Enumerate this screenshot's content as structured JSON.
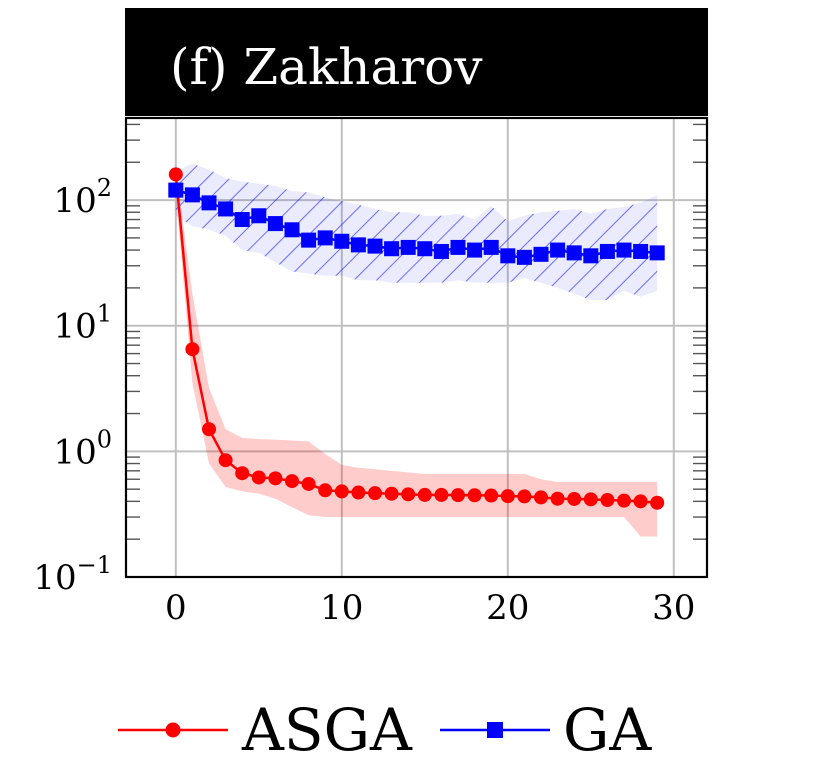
{
  "chart_data": {
    "type": "line",
    "title": "(f) Zakharov",
    "xlabel": "",
    "ylabel": "",
    "yscale": "log",
    "xlim": [
      -3,
      32
    ],
    "ylim": [
      0.1,
      450
    ],
    "xticks": [
      0,
      10,
      20,
      30
    ],
    "xtick_labels": [
      "0",
      "10",
      "20",
      "30"
    ],
    "yticks": [
      0.1,
      1,
      10,
      100
    ],
    "ytick_labels": [
      {
        "base": "10",
        "exp": "−1"
      },
      {
        "base": "10",
        "exp": "0"
      },
      {
        "base": "10",
        "exp": "1"
      },
      {
        "base": "10",
        "exp": "2"
      }
    ],
    "grid": true,
    "legend_position": "bottom",
    "x": [
      0,
      1,
      2,
      3,
      4,
      5,
      6,
      7,
      8,
      9,
      10,
      11,
      12,
      13,
      14,
      15,
      16,
      17,
      18,
      19,
      20,
      21,
      22,
      23,
      24,
      25,
      26,
      27,
      28,
      29
    ],
    "series": [
      {
        "name": "ASGA",
        "color": "#ff0000",
        "marker": "circle",
        "band_fill": "solid",
        "values": [
          160,
          6.5,
          1.5,
          0.85,
          0.67,
          0.62,
          0.61,
          0.58,
          0.55,
          0.49,
          0.48,
          0.47,
          0.465,
          0.46,
          0.455,
          0.45,
          0.45,
          0.448,
          0.447,
          0.445,
          0.44,
          0.438,
          0.43,
          0.42,
          0.418,
          0.415,
          0.41,
          0.405,
          0.4,
          0.39
        ],
        "lower": [
          110,
          3.5,
          0.8,
          0.52,
          0.48,
          0.46,
          0.42,
          0.36,
          0.31,
          0.3,
          0.3,
          0.3,
          0.3,
          0.3,
          0.3,
          0.3,
          0.3,
          0.3,
          0.3,
          0.3,
          0.3,
          0.3,
          0.3,
          0.3,
          0.3,
          0.3,
          0.3,
          0.3,
          0.21,
          0.21
        ],
        "upper": [
          180,
          18,
          3.2,
          1.5,
          1.28,
          1.25,
          1.24,
          1.22,
          1.2,
          0.95,
          0.78,
          0.74,
          0.72,
          0.7,
          0.68,
          0.66,
          0.66,
          0.66,
          0.66,
          0.66,
          0.66,
          0.66,
          0.6,
          0.57,
          0.57,
          0.57,
          0.57,
          0.57,
          0.57,
          0.57
        ]
      },
      {
        "name": "GA",
        "color": "#0000ff",
        "marker": "square",
        "band_fill": "hatched",
        "values": [
          120,
          110,
          95,
          85,
          70,
          75,
          65,
          58,
          48,
          50,
          47,
          44,
          43,
          41,
          42,
          41,
          39,
          42,
          40,
          42,
          36,
          35,
          37,
          40,
          38,
          36,
          39,
          40,
          39,
          38
        ],
        "lower": [
          75,
          62,
          58,
          52,
          40,
          38,
          32,
          27,
          26,
          25,
          25,
          23,
          23,
          22,
          22,
          22,
          22,
          23,
          22,
          22,
          22,
          24,
          22,
          20,
          18,
          16,
          16,
          19,
          17,
          19
        ],
        "upper": [
          170,
          195,
          175,
          150,
          140,
          135,
          130,
          118,
          115,
          105,
          98,
          92,
          85,
          80,
          80,
          75,
          75,
          78,
          70,
          90,
          68,
          75,
          80,
          82,
          85,
          78,
          85,
          88,
          95,
          110
        ]
      }
    ]
  }
}
